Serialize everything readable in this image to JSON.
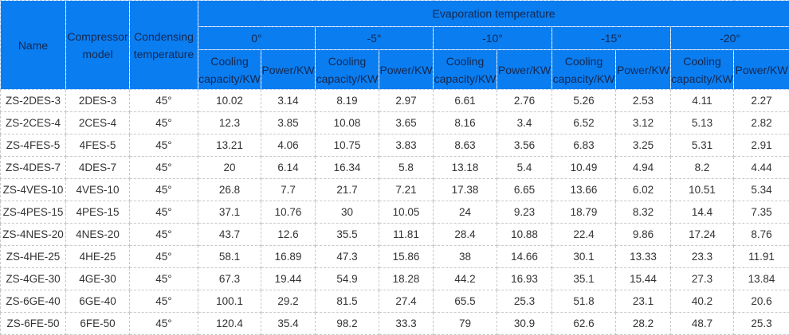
{
  "headers": {
    "name": "Name",
    "compressor_l1": "Compressor",
    "compressor_l2": "model",
    "condensing_l1": "Condensing",
    "condensing_l2": "temperature",
    "evaporation": "Evaporation temperature",
    "temps": [
      "0°",
      "-5°",
      "-10°",
      "-15°",
      "-20°"
    ],
    "cooling_l1": "Cooling",
    "cooling_l2": "capacity/KW",
    "power": "Power/KW"
  },
  "rows": [
    [
      "ZS-2DES-3",
      "2DES-3",
      "45°",
      "10.02",
      "3.14",
      "8.19",
      "2.97",
      "6.61",
      "2.76",
      "5.26",
      "2.53",
      "4.11",
      "2.27"
    ],
    [
      "ZS-2CES-4",
      "2CES-4",
      "45°",
      "12.3",
      "3.85",
      "10.08",
      "3.65",
      "8.16",
      "3.4",
      "6.52",
      "3.12",
      "5.13",
      "2.82"
    ],
    [
      "ZS-4FES-5",
      "4FES-5",
      "45°",
      "13.21",
      "4.06",
      "10.75",
      "3.83",
      "8.63",
      "3.56",
      "6.83",
      "3.25",
      "5.31",
      "2.91"
    ],
    [
      "ZS-4DES-7",
      "4DES-7",
      "45°",
      "20",
      "6.14",
      "16.34",
      "5.8",
      "13.18",
      "5.4",
      "10.49",
      "4.94",
      "8.2",
      "4.44"
    ],
    [
      "ZS-4VES-10",
      "4VES-10",
      "45°",
      "26.8",
      "7.7",
      "21.7",
      "7.21",
      "17.38",
      "6.65",
      "13.66",
      "6.02",
      "10.51",
      "5.34"
    ],
    [
      "ZS-4PES-15",
      "4PES-15",
      "45°",
      "37.1",
      "10.76",
      "30",
      "10.05",
      "24",
      "9.23",
      "18.79",
      "8.32",
      "14.4",
      "7.35"
    ],
    [
      "ZS-4NES-20",
      "4NES-20",
      "45°",
      "43.7",
      "12.6",
      "35.5",
      "11.81",
      "28.4",
      "10.88",
      "22.4",
      "9.86",
      "17.24",
      "8.76"
    ],
    [
      "ZS-4HE-25",
      "4HE-25",
      "45°",
      "58.1",
      "16.89",
      "47.3",
      "15.86",
      "38",
      "14.66",
      "30.1",
      "13.33",
      "23.3",
      "11.91"
    ],
    [
      "ZS-4GE-30",
      "4GE-30",
      "45°",
      "67.3",
      "19.44",
      "54.9",
      "18.28",
      "44.2",
      "16.93",
      "35.1",
      "15.44",
      "27.3",
      "13.84"
    ],
    [
      "ZS-6GE-40",
      "6GE-40",
      "45°",
      "100.1",
      "29.2",
      "81.5",
      "27.4",
      "65.5",
      "25.3",
      "51.8",
      "23.1",
      "40.2",
      "20.6"
    ],
    [
      "ZS-6FE-50",
      "6FE-50",
      "45°",
      "120.4",
      "35.4",
      "98.2",
      "33.3",
      "79",
      "30.9",
      "62.6",
      "28.2",
      "48.7",
      "25.3"
    ]
  ]
}
